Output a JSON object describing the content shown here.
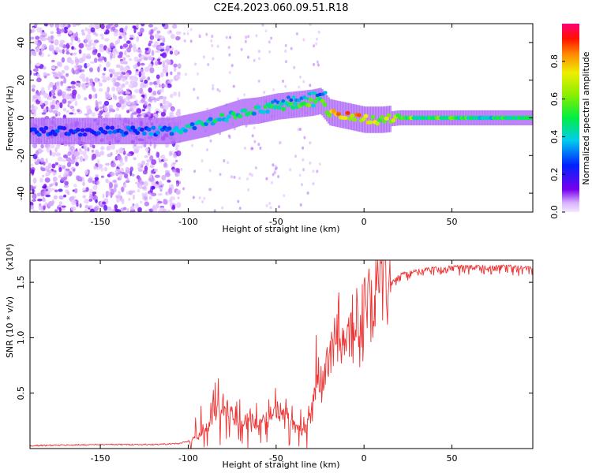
{
  "chart_data": [
    {
      "type": "heatmap",
      "title": "C2E4.2023.060.09.51.R18",
      "xlabel": "Height of straight line (km)",
      "ylabel": "Frequency (Hz)",
      "xlim": [
        -190,
        96
      ],
      "ylim": [
        -50,
        50
      ],
      "xticks": [
        -150,
        -100,
        -50,
        0,
        50
      ],
      "yticks": [
        -40,
        -20,
        0,
        20,
        40
      ],
      "colorbar": {
        "label": "Normalized spectral amplitude",
        "range": [
          0.0,
          1.0
        ],
        "ticks": [
          "0.0",
          "0.2",
          "0.4",
          "0.6",
          "0.8"
        ]
      },
      "ridge": {
        "x": [
          -190,
          -150,
          -130,
          -110,
          -100,
          -90,
          -80,
          -70,
          -60,
          -50,
          -40,
          -30,
          -25,
          -20,
          -10,
          0,
          10,
          20,
          50,
          96
        ],
        "freq": [
          -7,
          -7,
          -7,
          -7,
          -5,
          -3,
          0,
          3,
          4,
          6,
          7,
          8,
          9,
          3,
          1,
          -1,
          -1,
          0,
          0,
          0
        ],
        "amplitude": [
          0.3,
          0.3,
          0.35,
          0.4,
          0.45,
          0.5,
          0.55,
          0.55,
          0.5,
          0.6,
          0.6,
          0.65,
          0.6,
          0.85,
          0.9,
          0.95,
          0.85,
          0.7,
          0.6,
          0.55
        ]
      }
    },
    {
      "type": "line",
      "title": "",
      "xlabel": "Height of straight line (km)",
      "ylabel": "SNR (10 * v/v)",
      "y_exponent_label": "(x10⁴)",
      "xlim": [
        -190,
        96
      ],
      "ylim": [
        0,
        1.7
      ],
      "xticks": [
        -150,
        -100,
        -50,
        0,
        50
      ],
      "yticks": [
        0.5,
        1.0,
        1.5
      ],
      "ytick_labels": [
        "0.5",
        "1.0",
        "1.5"
      ],
      "series": [
        {
          "name": "SNR",
          "color": "#ee3333",
          "x": [
            -190,
            -150,
            -120,
            -105,
            -100,
            -95,
            -90,
            -85,
            -82,
            -80,
            -75,
            -70,
            -65,
            -60,
            -55,
            -50,
            -45,
            -40,
            -35,
            -30,
            -28,
            -26,
            -24,
            -22,
            -20,
            -18,
            -15,
            -12,
            -10,
            -8,
            -5,
            -2,
            0,
            3,
            5,
            8,
            10,
            12,
            15,
            18,
            20,
            25,
            30,
            35,
            40,
            50,
            60,
            70,
            80,
            90,
            96
          ],
          "y": [
            0.02,
            0.03,
            0.03,
            0.04,
            0.06,
            0.1,
            0.15,
            0.28,
            0.35,
            0.42,
            0.3,
            0.25,
            0.27,
            0.22,
            0.3,
            0.35,
            0.3,
            0.2,
            0.15,
            0.3,
            0.55,
            0.8,
            0.5,
            0.9,
            0.85,
            1.0,
            1.05,
            0.95,
            1.1,
            1.0,
            1.2,
            1.1,
            1.25,
            1.3,
            1.35,
            1.4,
            1.6,
            1.45,
            1.5,
            1.55,
            1.58,
            1.6,
            1.62,
            1.63,
            1.64,
            1.65,
            1.66,
            1.65,
            1.66,
            1.65,
            1.65
          ]
        }
      ]
    }
  ]
}
